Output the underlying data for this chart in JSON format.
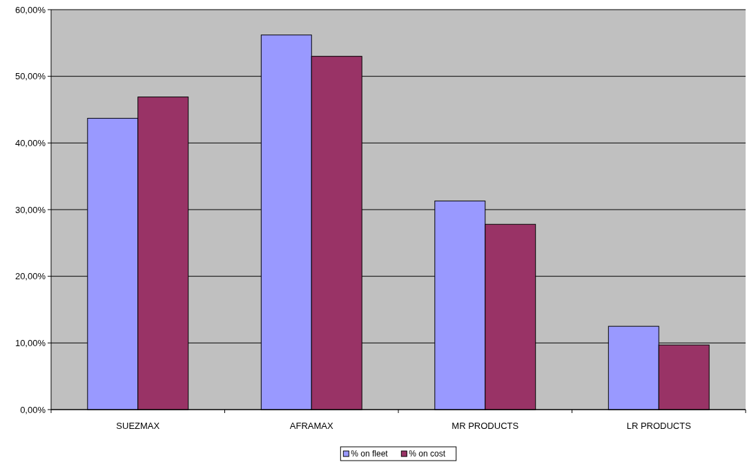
{
  "chart_data": {
    "type": "bar",
    "categories": [
      "SUEZMAX",
      "AFRAMAX",
      "MR PRODUCTS",
      "LR PRODUCTS"
    ],
    "series": [
      {
        "name": "% on fleet",
        "color": "#9999ff",
        "values": [
          43.7,
          56.2,
          31.3,
          12.5
        ]
      },
      {
        "name": "% on cost",
        "color": "#993366",
        "values": [
          46.9,
          53.0,
          27.8,
          9.7
        ]
      }
    ],
    "ylim": [
      0,
      60
    ],
    "yticks": [
      {
        "value": 0,
        "label": "0,00%"
      },
      {
        "value": 10,
        "label": "10,00%"
      },
      {
        "value": 20,
        "label": "20,00%"
      },
      {
        "value": 30,
        "label": "30,00%"
      },
      {
        "value": 40,
        "label": "40,00%"
      },
      {
        "value": 50,
        "label": "50,00%"
      },
      {
        "value": 60,
        "label": "60,00%"
      }
    ],
    "grid": "y",
    "legend": "bottom"
  }
}
